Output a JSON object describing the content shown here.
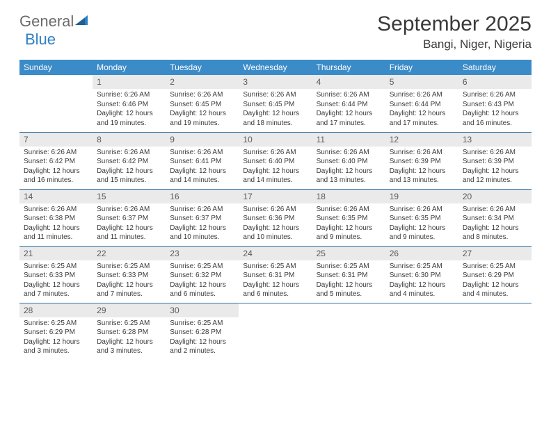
{
  "brand": {
    "part1": "General",
    "part2": "Blue"
  },
  "title": "September 2025",
  "location": "Bangi, Niger, Nigeria",
  "colors": {
    "header_bg": "#3b8bc8",
    "header_text": "#ffffff",
    "daynum_bg": "#eaeaea",
    "row_border": "#2f6fa3",
    "brand_gray": "#6b6b6b",
    "brand_blue": "#2f7fc2"
  },
  "weekdays": [
    "Sunday",
    "Monday",
    "Tuesday",
    "Wednesday",
    "Thursday",
    "Friday",
    "Saturday"
  ],
  "weeks": [
    [
      null,
      {
        "n": "1",
        "sr": "6:26 AM",
        "ss": "6:46 PM",
        "dl": "12 hours and 19 minutes."
      },
      {
        "n": "2",
        "sr": "6:26 AM",
        "ss": "6:45 PM",
        "dl": "12 hours and 19 minutes."
      },
      {
        "n": "3",
        "sr": "6:26 AM",
        "ss": "6:45 PM",
        "dl": "12 hours and 18 minutes."
      },
      {
        "n": "4",
        "sr": "6:26 AM",
        "ss": "6:44 PM",
        "dl": "12 hours and 17 minutes."
      },
      {
        "n": "5",
        "sr": "6:26 AM",
        "ss": "6:44 PM",
        "dl": "12 hours and 17 minutes."
      },
      {
        "n": "6",
        "sr": "6:26 AM",
        "ss": "6:43 PM",
        "dl": "12 hours and 16 minutes."
      }
    ],
    [
      {
        "n": "7",
        "sr": "6:26 AM",
        "ss": "6:42 PM",
        "dl": "12 hours and 16 minutes."
      },
      {
        "n": "8",
        "sr": "6:26 AM",
        "ss": "6:42 PM",
        "dl": "12 hours and 15 minutes."
      },
      {
        "n": "9",
        "sr": "6:26 AM",
        "ss": "6:41 PM",
        "dl": "12 hours and 14 minutes."
      },
      {
        "n": "10",
        "sr": "6:26 AM",
        "ss": "6:40 PM",
        "dl": "12 hours and 14 minutes."
      },
      {
        "n": "11",
        "sr": "6:26 AM",
        "ss": "6:40 PM",
        "dl": "12 hours and 13 minutes."
      },
      {
        "n": "12",
        "sr": "6:26 AM",
        "ss": "6:39 PM",
        "dl": "12 hours and 13 minutes."
      },
      {
        "n": "13",
        "sr": "6:26 AM",
        "ss": "6:39 PM",
        "dl": "12 hours and 12 minutes."
      }
    ],
    [
      {
        "n": "14",
        "sr": "6:26 AM",
        "ss": "6:38 PM",
        "dl": "12 hours and 11 minutes."
      },
      {
        "n": "15",
        "sr": "6:26 AM",
        "ss": "6:37 PM",
        "dl": "12 hours and 11 minutes."
      },
      {
        "n": "16",
        "sr": "6:26 AM",
        "ss": "6:37 PM",
        "dl": "12 hours and 10 minutes."
      },
      {
        "n": "17",
        "sr": "6:26 AM",
        "ss": "6:36 PM",
        "dl": "12 hours and 10 minutes."
      },
      {
        "n": "18",
        "sr": "6:26 AM",
        "ss": "6:35 PM",
        "dl": "12 hours and 9 minutes."
      },
      {
        "n": "19",
        "sr": "6:26 AM",
        "ss": "6:35 PM",
        "dl": "12 hours and 9 minutes."
      },
      {
        "n": "20",
        "sr": "6:26 AM",
        "ss": "6:34 PM",
        "dl": "12 hours and 8 minutes."
      }
    ],
    [
      {
        "n": "21",
        "sr": "6:25 AM",
        "ss": "6:33 PM",
        "dl": "12 hours and 7 minutes."
      },
      {
        "n": "22",
        "sr": "6:25 AM",
        "ss": "6:33 PM",
        "dl": "12 hours and 7 minutes."
      },
      {
        "n": "23",
        "sr": "6:25 AM",
        "ss": "6:32 PM",
        "dl": "12 hours and 6 minutes."
      },
      {
        "n": "24",
        "sr": "6:25 AM",
        "ss": "6:31 PM",
        "dl": "12 hours and 6 minutes."
      },
      {
        "n": "25",
        "sr": "6:25 AM",
        "ss": "6:31 PM",
        "dl": "12 hours and 5 minutes."
      },
      {
        "n": "26",
        "sr": "6:25 AM",
        "ss": "6:30 PM",
        "dl": "12 hours and 4 minutes."
      },
      {
        "n": "27",
        "sr": "6:25 AM",
        "ss": "6:29 PM",
        "dl": "12 hours and 4 minutes."
      }
    ],
    [
      {
        "n": "28",
        "sr": "6:25 AM",
        "ss": "6:29 PM",
        "dl": "12 hours and 3 minutes."
      },
      {
        "n": "29",
        "sr": "6:25 AM",
        "ss": "6:28 PM",
        "dl": "12 hours and 3 minutes."
      },
      {
        "n": "30",
        "sr": "6:25 AM",
        "ss": "6:28 PM",
        "dl": "12 hours and 2 minutes."
      },
      null,
      null,
      null,
      null
    ]
  ],
  "labels": {
    "sunrise": "Sunrise:",
    "sunset": "Sunset:",
    "daylight": "Daylight:"
  }
}
